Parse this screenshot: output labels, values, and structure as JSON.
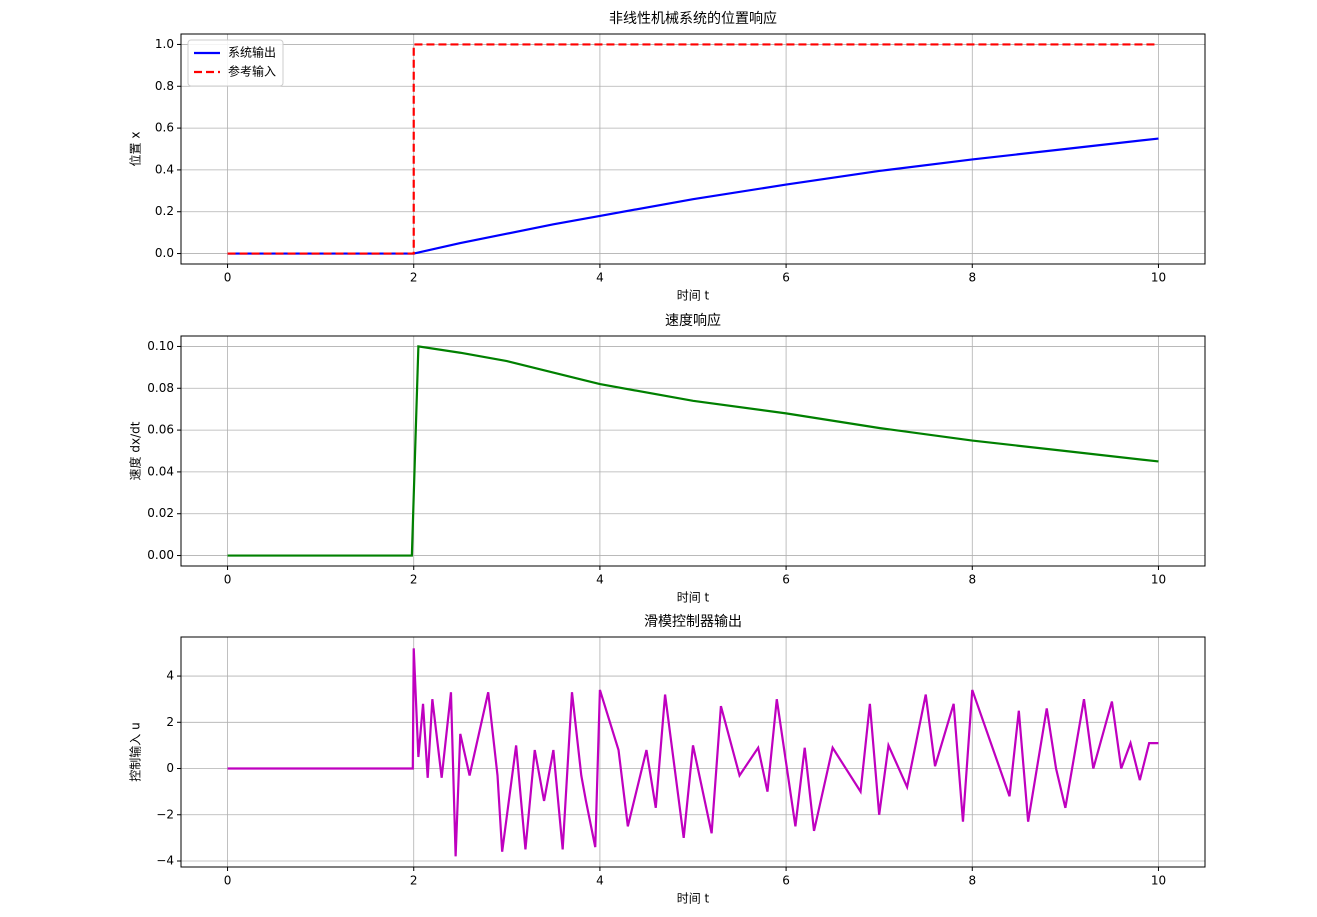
{
  "chart_data": [
    {
      "type": "line",
      "title": "非线性机械系统的位置响应",
      "xlabel": "时间 t",
      "ylabel": "位置 x",
      "grid": true,
      "legend": "upper left",
      "xlim": [
        -0.5,
        10.5
      ],
      "xticks": [
        0,
        2,
        4,
        6,
        8,
        10
      ],
      "ylim": [
        -0.05,
        1.05
      ],
      "yticks": [
        {
          "value": 0,
          "label": "0.0"
        },
        0.2,
        0.4,
        0.6,
        0.8,
        {
          "value": 1,
          "label": "1.0"
        }
      ],
      "series": [
        {
          "name": "系统输出",
          "color": "#0000ff",
          "linestyle": "solid",
          "x": [
            0,
            2,
            2.5,
            3,
            3.5,
            4,
            5,
            6,
            7,
            8,
            9,
            10
          ],
          "values": [
            0,
            0,
            0.05,
            0.095,
            0.14,
            0.18,
            0.26,
            0.33,
            0.395,
            0.45,
            0.5,
            0.55
          ]
        },
        {
          "name": "参考输入",
          "color": "#ff0000",
          "linestyle": "dashed",
          "x": [
            0,
            2,
            2,
            10
          ],
          "values": [
            0,
            0,
            1,
            1
          ]
        }
      ]
    },
    {
      "type": "line",
      "title": "速度响应",
      "xlabel": "时间 t",
      "ylabel": "速度 dx/dt",
      "grid": true,
      "xlim": [
        -0.5,
        10.5
      ],
      "xticks": [
        0,
        2,
        4,
        6,
        8,
        10
      ],
      "ylim": [
        -0.005,
        0.105
      ],
      "yticks": [
        {
          "value": 0,
          "label": "0.00"
        },
        0.02,
        0.04,
        0.06,
        0.08,
        {
          "value": 0.1,
          "label": "0.10"
        }
      ],
      "series": [
        {
          "color": "#008000",
          "linestyle": "solid",
          "x": [
            0,
            1.98,
            2.05,
            2.5,
            3,
            4,
            5,
            6,
            7,
            8,
            9,
            10
          ],
          "values": [
            0,
            0,
            0.1,
            0.097,
            0.093,
            0.082,
            0.074,
            0.068,
            0.061,
            0.055,
            0.05,
            0.045
          ]
        }
      ]
    },
    {
      "type": "line",
      "title": "滑模控制器输出",
      "xlabel": "时间 t",
      "ylabel": "控制输入 u",
      "grid": true,
      "xlim": [
        -0.5,
        10.5
      ],
      "xticks": [
        0,
        2,
        4,
        6,
        8,
        10
      ],
      "ylim": [
        -4.26,
        5.69
      ],
      "yticks": [
        {
          "value": -4,
          "label": "−4"
        },
        {
          "value": -2,
          "label": "−2"
        },
        0,
        2,
        4
      ],
      "series": [
        {
          "color": "#bf00bf",
          "linestyle": "solid",
          "x": [
            0,
            1.99,
            2,
            2.05,
            2.1,
            2.15,
            2.2,
            2.3,
            2.4,
            2.45,
            2.5,
            2.6,
            2.7,
            2.8,
            2.9,
            2.95,
            3.1,
            3.2,
            3.3,
            3.4,
            3.5,
            3.6,
            3.7,
            3.8,
            3.85,
            3.95,
            4,
            4.2,
            4.3,
            4.5,
            4.6,
            4.7,
            4.9,
            5,
            5.2,
            5.3,
            5.5,
            5.7,
            5.8,
            5.9,
            6.1,
            6.2,
            6.3,
            6.5,
            6.8,
            6.9,
            7,
            7.1,
            7.3,
            7.5,
            7.6,
            7.8,
            7.9,
            8,
            8.2,
            8.4,
            8.5,
            8.6,
            8.8,
            8.9,
            9,
            9.2,
            9.3,
            9.5,
            9.6,
            9.7,
            9.8,
            9.9,
            10
          ],
          "values": [
            0,
            0,
            5.2,
            0.5,
            2.8,
            -0.4,
            3,
            -0.4,
            3.3,
            -3.8,
            1.5,
            -0.3,
            1.5,
            3.3,
            -0.3,
            -3.6,
            1,
            -3.5,
            0.8,
            -1.4,
            0.8,
            -3.5,
            3.3,
            -0.3,
            -1.4,
            -3.4,
            3.4,
            0.8,
            -2.5,
            0.8,
            -1.7,
            3.2,
            -3,
            1,
            -2.8,
            2.7,
            -0.3,
            0.9,
            -1,
            3,
            -2.5,
            0.9,
            -2.7,
            0.9,
            -1,
            2.8,
            -2,
            1,
            -0.8,
            3.2,
            0.1,
            2.8,
            -2.3,
            3.4,
            1.1,
            -1.2,
            2.5,
            -2.3,
            2.6,
            0,
            -1.7,
            3,
            0,
            2.9,
            0,
            1.1,
            -0.5,
            1.1,
            1.1
          ]
        }
      ]
    }
  ]
}
